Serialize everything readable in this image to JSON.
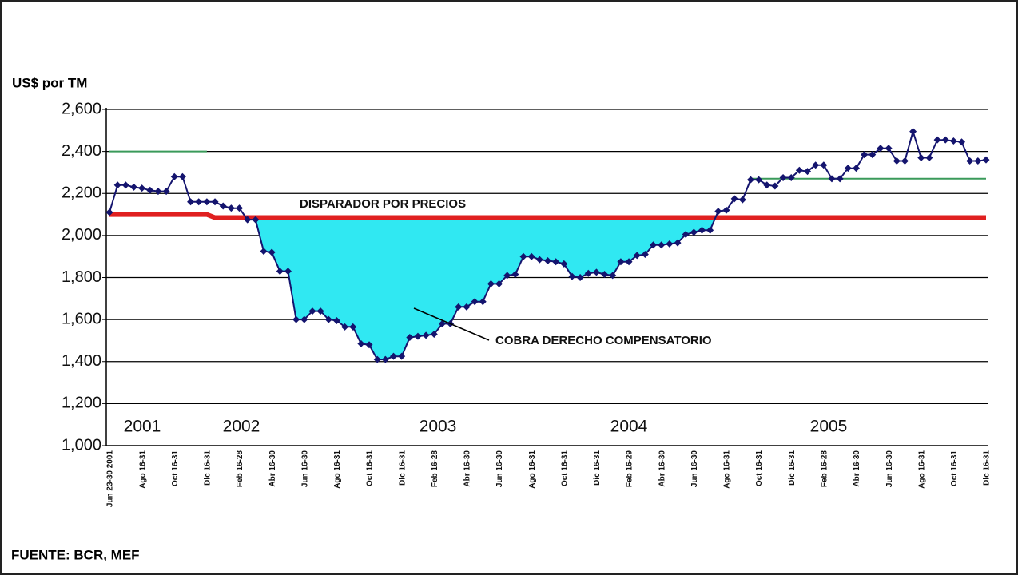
{
  "chart_data": {
    "type": "line",
    "ylabel": "US$ por TM",
    "source": "FUENTE: BCR, MEF",
    "annotations": [
      {
        "text": "DISPARADOR POR PRECIOS"
      },
      {
        "text": "COBRA DERECHO COMPENSATORIO"
      }
    ],
    "year_labels": [
      "2001",
      "2002",
      "2003",
      "2004",
      "2005"
    ],
    "categories": [
      "Jun 23-30 2001",
      null,
      null,
      null,
      "Ago 16-31",
      null,
      null,
      null,
      "Oct 16-31",
      null,
      null,
      null,
      "Dic 16-31",
      null,
      null,
      null,
      "Feb 16-28",
      null,
      null,
      null,
      "Abr 16-30",
      null,
      null,
      null,
      "Jun 16-30",
      null,
      null,
      null,
      "Ago 16-31",
      null,
      null,
      null,
      "Oct 16-31",
      null,
      null,
      null,
      "Dic 16-31",
      null,
      null,
      null,
      "Feb 16-28",
      null,
      null,
      null,
      "Abr 16-30",
      null,
      null,
      null,
      "Jun 16-30",
      null,
      null,
      null,
      "Ago 16-31",
      null,
      null,
      null,
      "Oct 16-31",
      null,
      null,
      null,
      "Dic 16-31",
      null,
      null,
      null,
      "Feb 16-29",
      null,
      null,
      null,
      "Abr 16-30",
      null,
      null,
      null,
      "Jun 16-30",
      null,
      null,
      null,
      "Ago 16-31",
      null,
      null,
      null,
      "Oct 16-31",
      null,
      null,
      null,
      "Dic 16-31",
      null,
      null,
      null,
      "Feb 16-28",
      null,
      null,
      null,
      "Abr 16-30",
      null,
      null,
      null,
      "Jun 16-30",
      null,
      null,
      null,
      "Ago 16-31",
      null,
      null,
      null,
      "Oct 16-31",
      null,
      null,
      null,
      "Dic 16-31"
    ],
    "series": [
      {
        "color": "#14146e",
        "markers": true,
        "values": [
          2110,
          2240,
          2240,
          2230,
          2225,
          2215,
          2210,
          2210,
          2280,
          2280,
          2160,
          2160,
          2160,
          2160,
          2140,
          2130,
          2130,
          2075,
          2075,
          1925,
          1920,
          1830,
          1830,
          1600,
          1600,
          1640,
          1640,
          1600,
          1595,
          1565,
          1565,
          1485,
          1480,
          1410,
          1410,
          1425,
          1425,
          1515,
          1520,
          1525,
          1530,
          1580,
          1580,
          1660,
          1660,
          1685,
          1685,
          1770,
          1770,
          1810,
          1815,
          1900,
          1900,
          1885,
          1880,
          1875,
          1865,
          1805,
          1800,
          1820,
          1825,
          1815,
          1810,
          1875,
          1875,
          1905,
          1910,
          1955,
          1955,
          1960,
          1965,
          2005,
          2015,
          2025,
          2025,
          2115,
          2120,
          2175,
          2170,
          2265,
          2265,
          2240,
          2235,
          2275,
          2275,
          2310,
          2305,
          2335,
          2335,
          2270,
          2270,
          2320,
          2320,
          2385,
          2385,
          2415,
          2415,
          2355,
          2355,
          2495,
          2370,
          2370,
          2455,
          2455,
          2450,
          2445,
          2355,
          2355,
          2360
        ]
      },
      {
        "color": "#e02020",
        "width": 6,
        "values": [
          2100,
          2100,
          2100,
          2100,
          2100,
          2100,
          2100,
          2100,
          2100,
          2100,
          2100,
          2100,
          2100,
          2085,
          2085,
          2085,
          2085,
          2085,
          2085,
          2085,
          2085,
          2085,
          2085,
          2085,
          2085,
          2085,
          2085,
          2085,
          2085,
          2085,
          2085,
          2085,
          2085,
          2085,
          2085,
          2085,
          2085,
          2085,
          2085,
          2085,
          2085,
          2085,
          2085,
          2085,
          2085,
          2085,
          2085,
          2085,
          2085,
          2085,
          2085,
          2085,
          2085,
          2085,
          2085,
          2085,
          2085,
          2085,
          2085,
          2085,
          2085,
          2085,
          2085,
          2085,
          2085,
          2085,
          2085,
          2085,
          2085,
          2085,
          2085,
          2085,
          2085,
          2085,
          2085,
          2085,
          2085,
          2085,
          2085,
          2085,
          2085,
          2085,
          2085,
          2085,
          2085,
          2085,
          2085,
          2085,
          2085,
          2085,
          2085,
          2085,
          2085,
          2085,
          2085,
          2085,
          2085,
          2085,
          2085,
          2085,
          2085,
          2085,
          2085,
          2085,
          2085,
          2085,
          2085,
          2085,
          2085
        ]
      },
      {
        "color": "#3a9a5a",
        "width": 2,
        "values": [
          2400,
          2400,
          2400,
          2400,
          2400,
          2400,
          2400,
          2400,
          2400,
          2400,
          2400,
          2400,
          2400,
          null,
          null,
          null,
          null,
          null,
          null,
          null,
          null,
          null,
          null,
          null,
          null,
          null,
          null,
          null,
          null,
          null,
          null,
          null,
          null,
          null,
          null,
          null,
          null,
          null,
          null,
          null,
          null,
          null,
          null,
          null,
          null,
          null,
          null,
          null,
          null,
          null,
          null,
          null,
          null,
          null,
          null,
          null,
          null,
          null,
          null,
          null,
          null,
          null,
          null,
          null,
          null,
          null,
          null,
          null,
          null,
          null,
          null,
          null,
          null,
          null,
          null,
          null,
          null,
          null,
          null,
          null,
          null,
          null,
          null,
          null,
          null,
          null,
          null,
          null,
          null,
          null,
          null,
          null,
          null,
          null,
          null,
          null,
          null,
          null,
          null,
          null,
          null,
          null,
          null,
          null,
          null,
          null,
          null,
          null,
          null
        ]
      },
      {
        "color": "#3a9a5a",
        "width": 2,
        "values": [
          null,
          null,
          null,
          null,
          null,
          null,
          null,
          null,
          null,
          null,
          null,
          null,
          null,
          null,
          null,
          null,
          null,
          null,
          null,
          null,
          null,
          null,
          null,
          null,
          null,
          null,
          null,
          null,
          null,
          null,
          null,
          null,
          null,
          null,
          null,
          null,
          null,
          null,
          null,
          null,
          null,
          null,
          null,
          null,
          null,
          null,
          null,
          null,
          null,
          null,
          null,
          null,
          null,
          null,
          null,
          null,
          null,
          null,
          null,
          null,
          null,
          null,
          null,
          null,
          null,
          null,
          null,
          null,
          null,
          null,
          null,
          null,
          null,
          null,
          null,
          null,
          null,
          null,
          null,
          2270,
          2270,
          2270,
          2270,
          2270,
          2270,
          2270,
          2270,
          2270,
          2270,
          2270,
          2270,
          2270,
          2270,
          2270,
          2270,
          2270,
          2270,
          2270,
          2270,
          2270,
          2270,
          2270,
          2270,
          2270,
          2270,
          2270,
          2270,
          2270,
          2270
        ]
      }
    ],
    "shade_color": "#30e8f2",
    "ylim": [
      1000,
      2600
    ],
    "yticks": [
      {
        "value": 1000,
        "label": "1,000"
      },
      {
        "value": 1200,
        "label": "1,200"
      },
      {
        "value": 1400,
        "label": "1,400"
      },
      {
        "value": 1600,
        "label": "1,600"
      },
      {
        "value": 1800,
        "label": "1,800"
      },
      {
        "value": 2000,
        "label": "2,000"
      },
      {
        "value": 2200,
        "label": "2,200"
      },
      {
        "value": 2400,
        "label": "2,400"
      },
      {
        "value": 2600,
        "label": "2,600"
      }
    ],
    "grid": true
  }
}
